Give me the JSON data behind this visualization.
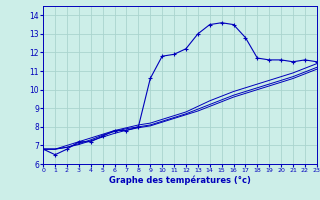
{
  "xlabel": "Graphe des températures (°c)",
  "background_color": "#cceee8",
  "grid_color": "#aad4ce",
  "line_color": "#0000bb",
  "x_hours": [
    0,
    1,
    2,
    3,
    4,
    5,
    6,
    7,
    8,
    9,
    10,
    11,
    12,
    13,
    14,
    15,
    16,
    17,
    18,
    19,
    20,
    21,
    22,
    23
  ],
  "y_main": [
    6.8,
    6.5,
    6.8,
    7.2,
    7.2,
    7.5,
    7.8,
    7.8,
    8.0,
    10.6,
    11.8,
    11.9,
    12.2,
    13.0,
    13.5,
    13.6,
    13.5,
    12.8,
    11.7,
    11.6,
    11.6,
    11.5,
    11.6,
    11.5
  ],
  "y_line2": [
    6.8,
    6.8,
    7.0,
    7.2,
    7.4,
    7.6,
    7.8,
    7.95,
    8.1,
    8.2,
    8.4,
    8.6,
    8.8,
    9.1,
    9.4,
    9.65,
    9.9,
    10.1,
    10.3,
    10.5,
    10.7,
    10.9,
    11.15,
    11.4
  ],
  "y_line3": [
    6.8,
    6.8,
    6.9,
    7.1,
    7.3,
    7.55,
    7.75,
    7.9,
    8.0,
    8.1,
    8.3,
    8.5,
    8.7,
    8.95,
    9.2,
    9.45,
    9.7,
    9.9,
    10.1,
    10.3,
    10.5,
    10.7,
    10.95,
    11.2
  ],
  "y_line4": [
    6.8,
    6.8,
    6.9,
    7.05,
    7.25,
    7.45,
    7.65,
    7.82,
    7.95,
    8.05,
    8.25,
    8.45,
    8.65,
    8.85,
    9.1,
    9.35,
    9.6,
    9.8,
    10.0,
    10.2,
    10.4,
    10.6,
    10.85,
    11.1
  ],
  "ylim": [
    6.0,
    14.5
  ],
  "xlim": [
    0,
    23
  ],
  "yticks": [
    6,
    7,
    8,
    9,
    10,
    11,
    12,
    13,
    14
  ],
  "xticks": [
    0,
    1,
    2,
    3,
    4,
    5,
    6,
    7,
    8,
    9,
    10,
    11,
    12,
    13,
    14,
    15,
    16,
    17,
    18,
    19,
    20,
    21,
    22,
    23
  ],
  "ytick_labels": [
    "6",
    "7",
    "8",
    "9",
    "10",
    "11",
    "12",
    "13",
    "14"
  ],
  "xtick_labels": [
    "0",
    "1",
    "2",
    "3",
    "4",
    "5",
    "6",
    "7",
    "8",
    "9",
    "10",
    "11",
    "12",
    "13",
    "14",
    "15",
    "16",
    "17",
    "18",
    "19",
    "20",
    "21",
    "22",
    "23"
  ]
}
